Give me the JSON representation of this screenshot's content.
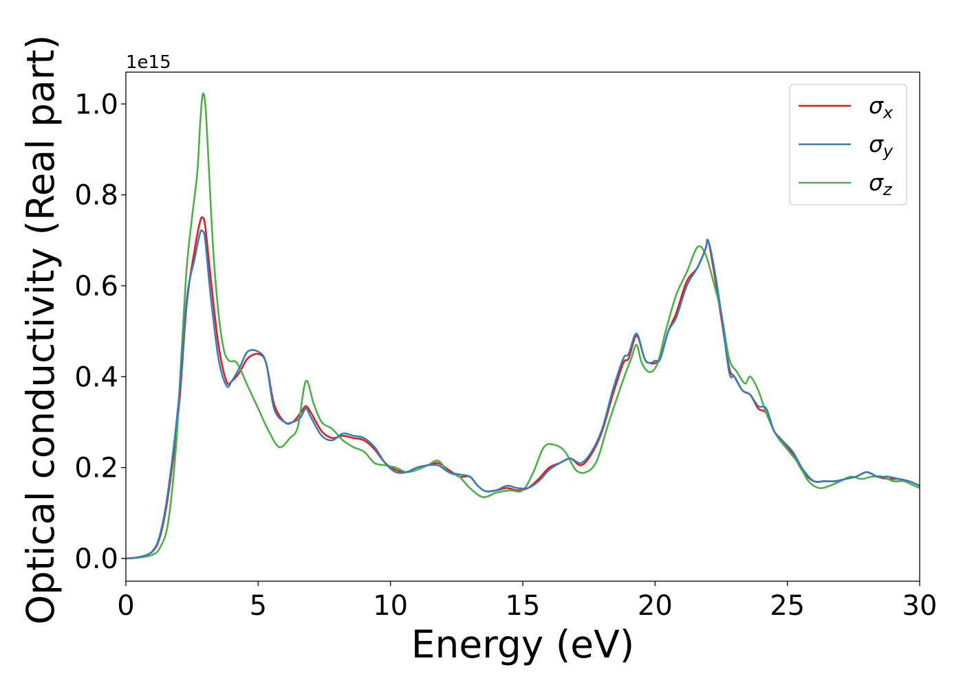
{
  "chart_data": {
    "type": "line",
    "title": "",
    "xlabel": "Energy (eV)",
    "ylabel": "Optical conductivity (Real part)",
    "y_offset_label": "1e15",
    "xlim": [
      0,
      30
    ],
    "ylim": [
      -0.05,
      1.07
    ],
    "xticks": [
      0,
      5,
      10,
      15,
      20,
      25,
      30
    ],
    "yticks": [
      0.0,
      0.2,
      0.4,
      0.6,
      0.8,
      1.0
    ],
    "xtick_labels": [
      "0",
      "5",
      "10",
      "15",
      "20",
      "25",
      "30"
    ],
    "ytick_labels": [
      "0.0",
      "0.2",
      "0.4",
      "0.6",
      "0.8",
      "1.0"
    ],
    "grid": false,
    "legend_position": "top-right",
    "series": [
      {
        "name": "σx",
        "symbol": "σ",
        "subscript": "x",
        "color": "#e41a1c",
        "x": [
          0,
          0.5,
          1.0,
          1.3,
          1.6,
          2.0,
          2.3,
          2.6,
          2.8,
          2.9,
          3.0,
          3.2,
          3.5,
          3.8,
          4.0,
          4.3,
          4.6,
          5.0,
          5.3,
          5.6,
          6.0,
          6.3,
          6.6,
          6.8,
          7.0,
          7.4,
          7.8,
          8.2,
          8.6,
          9.0,
          9.4,
          9.8,
          10.2,
          10.6,
          11.0,
          11.4,
          11.8,
          12.2,
          12.6,
          13.0,
          13.3,
          13.6,
          14.0,
          14.4,
          14.8,
          15.2,
          15.6,
          16.0,
          16.4,
          16.8,
          17.2,
          17.6,
          18.0,
          18.4,
          18.8,
          19.0,
          19.3,
          19.6,
          19.8,
          20.0,
          20.2,
          20.5,
          20.8,
          21.2,
          21.6,
          21.9,
          22.0,
          22.2,
          22.5,
          22.8,
          23.0,
          23.3,
          23.6,
          23.9,
          24.2,
          24.5,
          24.8,
          25.2,
          25.6,
          26.0,
          26.4,
          26.8,
          27.2,
          27.6,
          28.0,
          28.4,
          28.8,
          29.2,
          29.6,
          30.0
        ],
        "values": [
          0,
          0.003,
          0.015,
          0.05,
          0.14,
          0.33,
          0.56,
          0.68,
          0.74,
          0.75,
          0.73,
          0.62,
          0.47,
          0.39,
          0.39,
          0.41,
          0.44,
          0.45,
          0.43,
          0.34,
          0.3,
          0.3,
          0.32,
          0.335,
          0.32,
          0.28,
          0.265,
          0.27,
          0.265,
          0.26,
          0.24,
          0.21,
          0.195,
          0.19,
          0.2,
          0.205,
          0.21,
          0.195,
          0.18,
          0.18,
          0.16,
          0.148,
          0.15,
          0.155,
          0.15,
          0.155,
          0.175,
          0.2,
          0.21,
          0.22,
          0.205,
          0.23,
          0.28,
          0.36,
          0.43,
          0.44,
          0.49,
          0.44,
          0.43,
          0.43,
          0.44,
          0.5,
          0.54,
          0.61,
          0.64,
          0.68,
          0.7,
          0.64,
          0.53,
          0.42,
          0.4,
          0.37,
          0.36,
          0.33,
          0.32,
          0.28,
          0.26,
          0.23,
          0.19,
          0.17,
          0.17,
          0.17,
          0.175,
          0.18,
          0.19,
          0.18,
          0.175,
          0.175,
          0.17,
          0.16
        ]
      },
      {
        "name": "σy",
        "symbol": "σ",
        "subscript": "y",
        "color": "#377eb8",
        "x": [
          0,
          0.5,
          1.0,
          1.3,
          1.6,
          2.0,
          2.3,
          2.6,
          2.8,
          2.9,
          3.0,
          3.2,
          3.5,
          3.8,
          4.0,
          4.3,
          4.6,
          5.0,
          5.3,
          5.6,
          6.0,
          6.3,
          6.6,
          6.8,
          7.0,
          7.4,
          7.8,
          8.2,
          8.6,
          9.0,
          9.4,
          9.8,
          10.2,
          10.6,
          11.0,
          11.4,
          11.8,
          12.2,
          12.6,
          13.0,
          13.3,
          13.6,
          14.0,
          14.4,
          14.8,
          15.2,
          15.6,
          16.0,
          16.4,
          16.8,
          17.2,
          17.6,
          18.0,
          18.4,
          18.8,
          19.0,
          19.3,
          19.6,
          19.8,
          20.0,
          20.2,
          20.5,
          20.8,
          21.2,
          21.6,
          21.9,
          22.0,
          22.2,
          22.5,
          22.8,
          23.0,
          23.3,
          23.6,
          23.9,
          24.2,
          24.5,
          24.8,
          25.2,
          25.6,
          26.0,
          26.4,
          26.8,
          27.2,
          27.6,
          28.0,
          28.4,
          28.8,
          29.2,
          29.6,
          30.0
        ],
        "values": [
          0,
          0.003,
          0.016,
          0.055,
          0.15,
          0.35,
          0.57,
          0.66,
          0.715,
          0.72,
          0.7,
          0.58,
          0.44,
          0.38,
          0.39,
          0.42,
          0.455,
          0.455,
          0.43,
          0.33,
          0.3,
          0.3,
          0.31,
          0.33,
          0.31,
          0.27,
          0.26,
          0.275,
          0.27,
          0.265,
          0.245,
          0.21,
          0.19,
          0.19,
          0.2,
          0.205,
          0.205,
          0.19,
          0.185,
          0.18,
          0.16,
          0.148,
          0.15,
          0.16,
          0.155,
          0.155,
          0.17,
          0.195,
          0.21,
          0.22,
          0.21,
          0.235,
          0.285,
          0.37,
          0.44,
          0.45,
          0.495,
          0.44,
          0.43,
          0.435,
          0.44,
          0.5,
          0.53,
          0.6,
          0.64,
          0.68,
          0.7,
          0.65,
          0.54,
          0.41,
          0.4,
          0.37,
          0.36,
          0.335,
          0.33,
          0.28,
          0.26,
          0.235,
          0.195,
          0.17,
          0.17,
          0.17,
          0.175,
          0.18,
          0.19,
          0.18,
          0.18,
          0.175,
          0.17,
          0.16
        ]
      },
      {
        "name": "σz",
        "symbol": "σ",
        "subscript": "z",
        "color": "#4daf4a",
        "x": [
          0,
          0.5,
          1.0,
          1.3,
          1.6,
          1.9,
          2.1,
          2.3,
          2.5,
          2.7,
          2.8,
          2.9,
          3.0,
          3.1,
          3.3,
          3.5,
          3.7,
          3.9,
          4.2,
          4.6,
          5.0,
          5.4,
          5.8,
          6.2,
          6.5,
          6.8,
          7.1,
          7.4,
          7.8,
          8.2,
          8.6,
          9.0,
          9.4,
          9.8,
          10.2,
          10.6,
          11.0,
          11.4,
          11.8,
          12.2,
          12.6,
          13.0,
          13.5,
          14.0,
          14.5,
          15.0,
          15.4,
          15.8,
          16.2,
          16.6,
          17.0,
          17.4,
          17.8,
          18.2,
          18.6,
          18.9,
          19.1,
          19.3,
          19.5,
          19.8,
          20.1,
          20.4,
          20.8,
          21.2,
          21.6,
          21.9,
          22.2,
          22.5,
          22.8,
          23.1,
          23.4,
          23.6,
          23.9,
          24.2,
          24.6,
          25.0,
          25.4,
          25.8,
          26.2,
          26.6,
          27.0,
          27.4,
          27.8,
          28.2,
          28.6,
          29.0,
          29.4,
          29.8,
          30.0
        ],
        "values": [
          0,
          0.002,
          0.008,
          0.025,
          0.08,
          0.25,
          0.45,
          0.64,
          0.75,
          0.85,
          0.95,
          1.02,
          1.0,
          0.9,
          0.68,
          0.54,
          0.46,
          0.435,
          0.43,
          0.38,
          0.33,
          0.28,
          0.245,
          0.265,
          0.29,
          0.39,
          0.34,
          0.3,
          0.285,
          0.26,
          0.245,
          0.235,
          0.21,
          0.205,
          0.2,
          0.19,
          0.195,
          0.205,
          0.215,
          0.19,
          0.18,
          0.155,
          0.135,
          0.145,
          0.15,
          0.15,
          0.19,
          0.245,
          0.25,
          0.235,
          0.195,
          0.19,
          0.215,
          0.29,
          0.36,
          0.41,
          0.44,
          0.47,
          0.43,
          0.41,
          0.43,
          0.5,
          0.58,
          0.63,
          0.685,
          0.67,
          0.61,
          0.54,
          0.44,
          0.41,
          0.385,
          0.4,
          0.37,
          0.32,
          0.27,
          0.24,
          0.21,
          0.17,
          0.155,
          0.16,
          0.17,
          0.18,
          0.175,
          0.18,
          0.18,
          0.17,
          0.17,
          0.16,
          0.155
        ]
      }
    ]
  }
}
